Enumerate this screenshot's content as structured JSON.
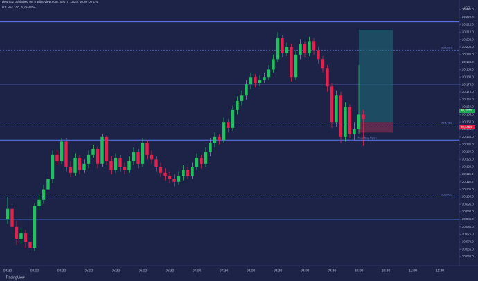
{
  "header": {
    "publisher": "dewmaz published on TradingView.com, Sep 27, 2024 10:06 UTC-4",
    "logo": "TradingView"
  },
  "chart_data": {
    "type": "candlestick",
    "title": "US Nas 100, 5, OANDA",
    "currency": "USD",
    "up_color": "#1fc25a",
    "down_color": "#e5204b",
    "grid": false,
    "categories": [
      "03:30",
      null,
      null,
      null,
      null,
      null,
      "04:00",
      null,
      null,
      null,
      null,
      null,
      "04:30",
      null,
      null,
      null,
      null,
      null,
      "05:00",
      null,
      null,
      null,
      null,
      null,
      "05:30",
      null,
      null,
      null,
      null,
      null,
      "06:00",
      null,
      null,
      null,
      null,
      null,
      "06:30",
      null,
      null,
      null,
      null,
      null,
      "07:00",
      null,
      null,
      null,
      null,
      null,
      "07:30",
      null,
      null,
      null,
      null,
      null,
      "08:00",
      null,
      null,
      null,
      null,
      null,
      "08:30",
      null,
      null,
      null,
      null,
      null,
      "09:00",
      null,
      null,
      null,
      null,
      null,
      "09:30",
      null,
      null,
      null,
      null,
      null,
      "10:00",
      null,
      null,
      null,
      null,
      null,
      "10:30",
      null,
      null,
      null,
      null,
      null,
      "11:00",
      null,
      null,
      null,
      null,
      null,
      "11:30"
    ],
    "open": [
      20085,
      20092,
      20080,
      20072,
      20076,
      20070,
      20066,
      20094,
      20098,
      20105,
      20112,
      20128,
      20124,
      20137,
      20120,
      20116,
      20126,
      20118,
      20122,
      20128,
      20132,
      20122,
      20140,
      20124,
      20118,
      20126,
      20120,
      20118,
      20124,
      20130,
      20122,
      20136,
      20128,
      20125,
      20120,
      20116,
      20114,
      20112,
      20110,
      20114,
      20118,
      20114,
      20120,
      20126,
      20122,
      20130,
      20136,
      20140,
      20138,
      20150,
      20146,
      20158,
      20164,
      20168,
      20175,
      20180,
      20176,
      20178,
      20180,
      20185,
      20192,
      20206,
      20196,
      20200,
      20180,
      20195,
      20202,
      20196,
      20204,
      20198,
      20192,
      20186,
      20174,
      20150,
      20168,
      20140,
      20160,
      20142,
      20145,
      20155,
      null,
      null,
      null,
      null,
      null,
      null,
      null,
      null,
      null,
      null,
      null,
      null,
      null,
      null,
      null,
      null,
      null
    ],
    "high": [
      20100,
      20095,
      20084,
      20079,
      20078,
      20073,
      20096,
      20101,
      20108,
      20115,
      20131,
      20131,
      20139,
      20139,
      20124,
      20129,
      20128,
      20125,
      20131,
      20135,
      20134,
      20142,
      20141,
      20127,
      20129,
      20128,
      20123,
      20127,
      20133,
      20132,
      20139,
      20138,
      20131,
      20127,
      20123,
      20119,
      20117,
      20115,
      20117,
      20121,
      20120,
      20123,
      20129,
      20128,
      20133,
      20139,
      20143,
      20142,
      20153,
      20152,
      20161,
      20167,
      20171,
      20178,
      20183,
      20182,
      20181,
      20183,
      20188,
      20195,
      20210,
      20208,
      20203,
      20202,
      20198,
      20205,
      20204,
      20207,
      20206,
      20200,
      20194,
      20188,
      20176,
      20171,
      20170,
      20163,
      20162,
      20150,
      20188,
      20158,
      null,
      null,
      null,
      null,
      null,
      null,
      null,
      null,
      null,
      null,
      null,
      null,
      null,
      null,
      null,
      null,
      null
    ],
    "low": [
      20082,
      20076,
      20068,
      20069,
      20066,
      20062,
      20064,
      20091,
      20095,
      20102,
      20109,
      20121,
      20122,
      20117,
      20113,
      20114,
      20115,
      20116,
      20119,
      20126,
      20119,
      20120,
      20121,
      20115,
      20116,
      20117,
      20115,
      20116,
      20121,
      20119,
      20120,
      20125,
      20122,
      20117,
      20113,
      20111,
      20109,
      20107,
      20108,
      20111,
      20112,
      20112,
      20118,
      20119,
      20120,
      20127,
      20133,
      20135,
      20136,
      20143,
      20144,
      20155,
      20161,
      20165,
      20172,
      20173,
      20174,
      20176,
      20178,
      20183,
      20190,
      20193,
      20194,
      20177,
      20178,
      20192,
      20193,
      20194,
      20195,
      20189,
      20183,
      20170,
      20146,
      20147,
      20136,
      20137,
      20139,
      20138,
      20142,
      20134,
      null,
      null,
      null,
      null,
      null,
      null,
      null,
      null,
      null,
      null,
      null,
      null,
      null,
      null,
      null,
      null,
      null
    ],
    "close": [
      20092,
      20080,
      20072,
      20076,
      20070,
      20066,
      20094,
      20098,
      20105,
      20112,
      20128,
      20124,
      20137,
      20120,
      20116,
      20126,
      20118,
      20122,
      20128,
      20132,
      20122,
      20140,
      20124,
      20118,
      20126,
      20120,
      20118,
      20124,
      20130,
      20122,
      20136,
      20128,
      20125,
      20120,
      20116,
      20114,
      20112,
      20110,
      20114,
      20118,
      20114,
      20120,
      20126,
      20122,
      20130,
      20136,
      20140,
      20138,
      20150,
      20146,
      20158,
      20164,
      20168,
      20175,
      20180,
      20176,
      20178,
      20180,
      20185,
      20192,
      20206,
      20196,
      20200,
      20180,
      20195,
      20202,
      20196,
      20204,
      20198,
      20192,
      20186,
      20174,
      20150,
      20168,
      20140,
      20160,
      20142,
      20145,
      20155,
      20152,
      null,
      null,
      null,
      null,
      null,
      null,
      null,
      null,
      null,
      null,
      null,
      null,
      null,
      null,
      null,
      null,
      null
    ],
    "ylim": [
      20054,
      20226.8
    ],
    "yticks": [
      {
        "value": 20060,
        "label": "20,060.0"
      },
      {
        "value": 20065,
        "label": "20,065.0"
      },
      {
        "value": 20070,
        "label": "20,070.0"
      },
      {
        "value": 20075,
        "label": "20,075.0"
      },
      {
        "value": 20080,
        "label": "20,080.0"
      },
      {
        "value": 20085,
        "label": "20,085.0"
      },
      {
        "value": 20090,
        "label": "20,090.0"
      },
      {
        "value": 20095,
        "label": "20,095.0"
      },
      {
        "value": 20100,
        "label": "20,100.0"
      },
      {
        "value": 20105,
        "label": "20,105.0"
      },
      {
        "value": 20110,
        "label": "20,110.0"
      },
      {
        "value": 20115,
        "label": "20,115.0"
      },
      {
        "value": 20120,
        "label": "20,120.0"
      },
      {
        "value": 20125,
        "label": "20,125.0"
      },
      {
        "value": 20130,
        "label": "20,130.0"
      },
      {
        "value": 20135,
        "label": "20,135.0"
      },
      {
        "value": 20140,
        "label": "20,140.0"
      },
      {
        "value": 20145,
        "label": "20,145.0"
      },
      {
        "value": 20150,
        "label": "20,150.0"
      },
      {
        "value": 20155,
        "label": "20,155.0"
      },
      {
        "value": 20160,
        "label": "20,160.0"
      },
      {
        "value": 20165,
        "label": "20,165.0"
      },
      {
        "value": 20170,
        "label": "20,170.0"
      },
      {
        "value": 20175,
        "label": "20,175.0"
      },
      {
        "value": 20180,
        "label": "20,180.0"
      },
      {
        "value": 20185,
        "label": "20,185.0"
      },
      {
        "value": 20190,
        "label": "20,190.0"
      },
      {
        "value": 20195,
        "label": "20,195.0"
      },
      {
        "value": 20200,
        "label": "20,200.0"
      },
      {
        "value": 20205,
        "label": "20,205.0"
      },
      {
        "value": 20210,
        "label": "20,210.0"
      },
      {
        "value": 20215,
        "label": "20,215.0"
      },
      {
        "value": 20220,
        "label": "20,220.0"
      },
      {
        "value": 20225,
        "label": "20,225.0"
      }
    ],
    "levels": [
      {
        "value": 20216.8,
        "color": "#5b7cf5"
      },
      {
        "value": 20198,
        "color": "#4a5fb8",
        "label": "20,198.0"
      },
      {
        "value": 20175,
        "color": "#3b4a8e"
      },
      {
        "value": 20148,
        "color": "#4a5fb8",
        "label": "20,148.0"
      },
      {
        "value": 20138,
        "color": "#5b7cf5",
        "label": "True Day Open"
      },
      {
        "value": 20100,
        "color": "#4a5fb8",
        "label": "20,100.0"
      },
      {
        "value": 20085,
        "color": "#5b7cf5"
      }
    ],
    "position": {
      "entry": 20150,
      "target": 20211.5,
      "stop": 20143
    },
    "price_tags": [
      {
        "value": 20157.5,
        "label": "20,157.5",
        "color": "#1fa552"
      },
      {
        "value": 20146.5,
        "label": "20,146.5",
        "color": "#e5204b"
      }
    ]
  }
}
